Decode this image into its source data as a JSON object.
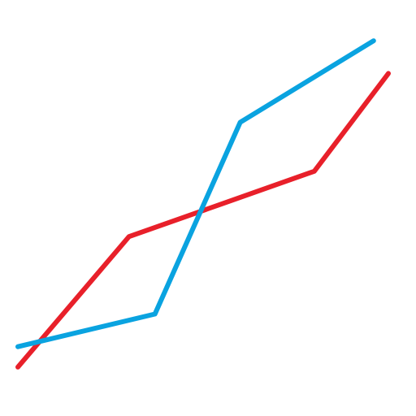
{
  "chart_data": {
    "type": "line",
    "title": "",
    "xlabel": "",
    "ylabel": "",
    "grid": false,
    "legend": "none",
    "xlim": [
      0,
      10
    ],
    "ylim": [
      0,
      10
    ],
    "series": [
      {
        "color": "#e8202a",
        "x": [
          0,
          3,
          8,
          10
        ],
        "y": [
          1,
          4.2,
          5.8,
          8.2
        ]
      },
      {
        "color": "#0aa3e0",
        "x": [
          0,
          3.7,
          6,
          9.6
        ],
        "y": [
          1.5,
          2.3,
          7,
          9
        ]
      }
    ]
  }
}
